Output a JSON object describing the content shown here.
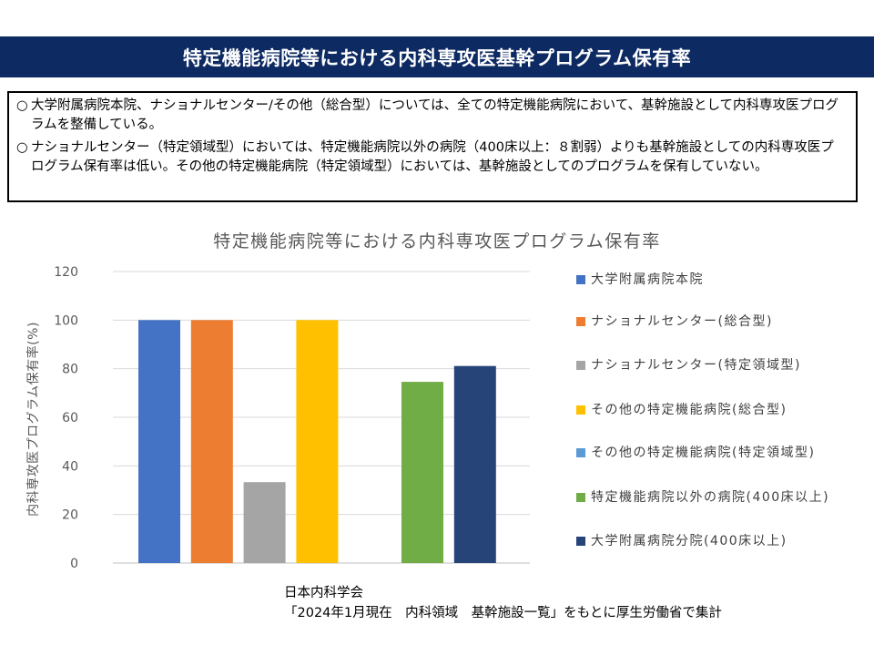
{
  "header": {
    "title": "特定機能病院等における内科専攻医基幹プログラム保有率"
  },
  "notes": [
    {
      "mark": "○",
      "text": "大学附属病院本院、ナショナルセンター/その他（総合型）については、全ての特定機能病院において、基幹施設として内科専攻医プログラムを整備している。"
    },
    {
      "mark": "○",
      "text": "ナショナルセンター（特定領域型）においては、特定機能病院以外の病院（400床以上：８割弱）よりも基幹施設としての内科専攻医プログラム保有率は低い。その他の特定機能病院（特定領域型）においては、基幹施設としてのプログラムを保有していない。"
    }
  ],
  "chart_data": {
    "type": "bar",
    "title": "特定機能病院等における内科専攻医プログラム保有率",
    "ylabel": "内科専攻医プログラム保有率(%)",
    "ylim": [
      0,
      120
    ],
    "yticks": [
      "0",
      "20",
      "40",
      "60",
      "80",
      "100",
      "120"
    ],
    "grid": true,
    "legend_position": "right",
    "series": [
      {
        "name": "大学附属病院本院",
        "value": 100,
        "color": "#4472c4"
      },
      {
        "name": "ナショナルセンター(総合型)",
        "value": 100,
        "color": "#ed7d31"
      },
      {
        "name": "ナショナルセンター(特定領域型)",
        "value": 33.3,
        "color": "#a5a5a5"
      },
      {
        "name": "その他の特定機能病院(総合型)",
        "value": 100,
        "color": "#ffc000"
      },
      {
        "name": "その他の特定機能病院(特定領域型)",
        "value": 0,
        "color": "#5b9bd5"
      },
      {
        "name": "特定機能病院以外の病院(400床以上)",
        "value": 74.6,
        "color": "#70ad47"
      },
      {
        "name": "大学附属病院分院(400床以上)",
        "value": 81.1,
        "color": "#264478"
      }
    ]
  },
  "footer": {
    "line1": "日本内科学会",
    "line2": "「2024年1月現在　内科領域　基幹施設一覧」をもとに厚生労働省で集計"
  }
}
